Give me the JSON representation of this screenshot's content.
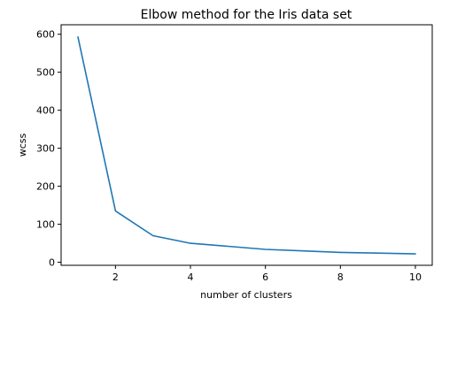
{
  "chart_data": {
    "type": "line",
    "title": "Elbow method for the Iris data set",
    "xlabel": "number of clusters",
    "ylabel": "wcss",
    "xlim": [
      0.55,
      10.45
    ],
    "ylim": [
      -8,
      625
    ],
    "xticks": [
      2,
      4,
      6,
      8,
      10
    ],
    "yticks": [
      0,
      100,
      200,
      300,
      400,
      500,
      600
    ],
    "grid": false,
    "series": [
      {
        "x": [
          1,
          2,
          3,
          4,
          5,
          6,
          7,
          8,
          9,
          10
        ],
        "y": [
          593,
          135,
          70,
          50,
          42,
          34,
          30,
          26,
          24,
          22
        ],
        "color": "#1f77b4"
      }
    ]
  }
}
